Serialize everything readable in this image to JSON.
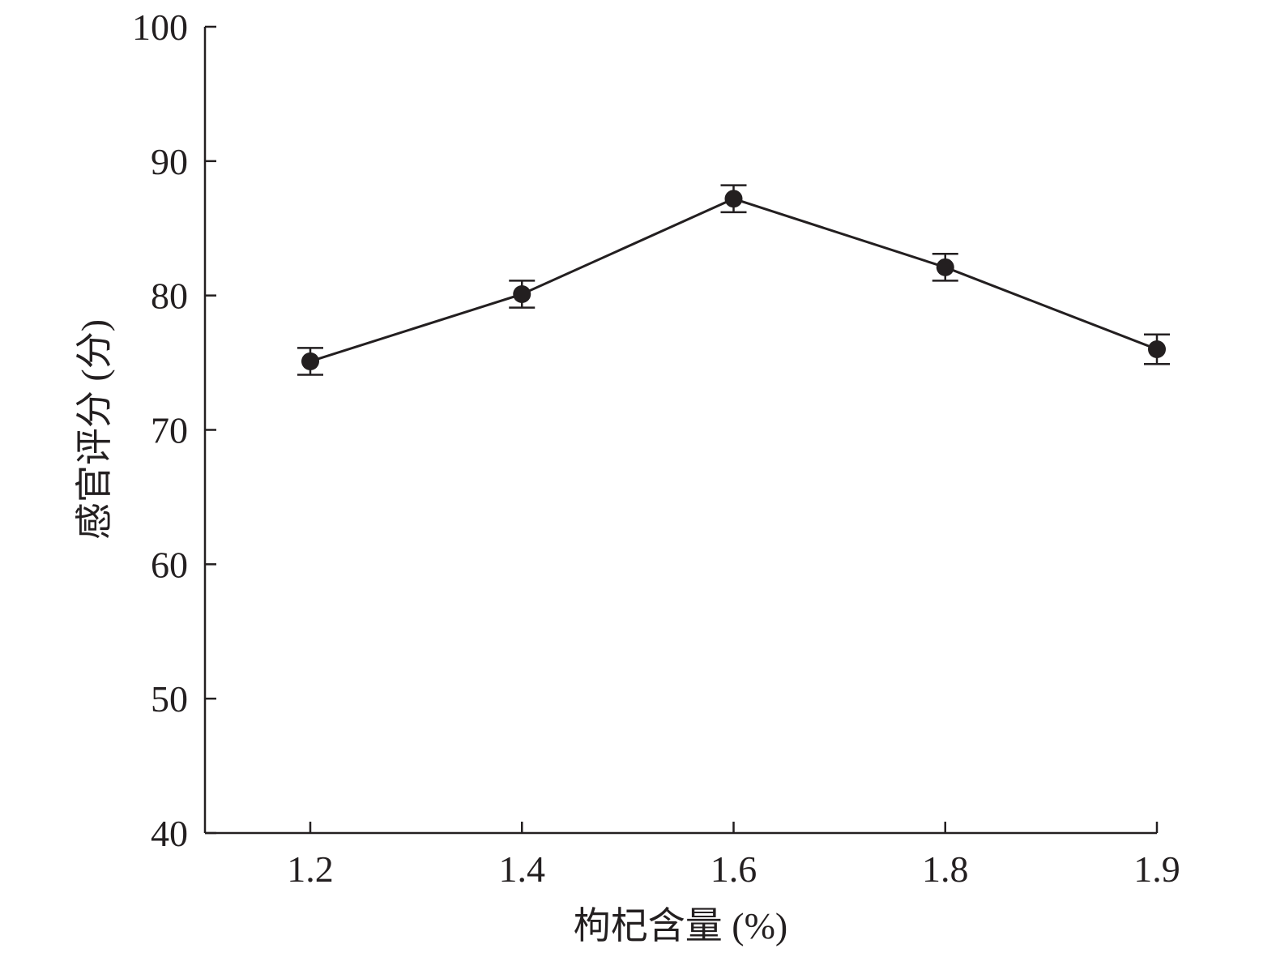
{
  "chart_data": {
    "type": "line",
    "title": "",
    "xlabel": "枸杞含量 (%)",
    "ylabel": "感官评分 (分)",
    "categories": [
      "1.2",
      "1.4",
      "1.6",
      "1.8",
      "1.9"
    ],
    "values": [
      75.1,
      80.1,
      87.2,
      82.1,
      76.0
    ],
    "errors": [
      1.0,
      1.0,
      1.0,
      1.0,
      1.1
    ],
    "ylim": [
      40,
      100
    ],
    "yticks": [
      "40",
      "50",
      "60",
      "70",
      "80",
      "90",
      "100"
    ],
    "grid": false,
    "line_color": "#231f20",
    "marker": "filled-circle"
  }
}
